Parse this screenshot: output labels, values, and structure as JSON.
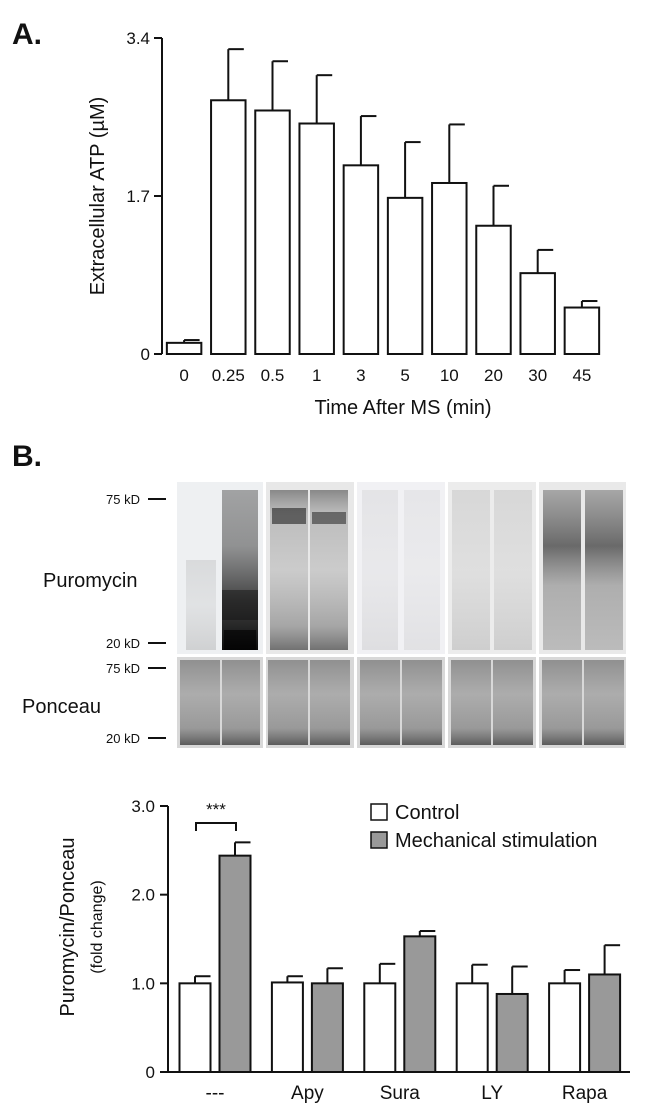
{
  "panels": {
    "a_label": "A.",
    "b_label": "B."
  },
  "chart_data": [
    {
      "type": "bar",
      "panel": "A",
      "title": "",
      "xlabel": "Time After MS (min)",
      "ylabel": "Extracellular ATP (µM)",
      "ylim": [
        0,
        3.4
      ],
      "yticks": [
        "0",
        "1.7",
        "3.4"
      ],
      "categories": [
        "0",
        "0.25",
        "0.5",
        "1",
        "3",
        "5",
        "10",
        "20",
        "30",
        "45"
      ],
      "values": [
        0.12,
        2.73,
        2.62,
        2.48,
        2.03,
        1.68,
        1.84,
        1.38,
        0.87,
        0.5
      ],
      "errors": [
        0.03,
        0.55,
        0.53,
        0.52,
        0.53,
        0.6,
        0.63,
        0.43,
        0.25,
        0.07
      ],
      "bar_color": "#ffffff",
      "grid": false
    },
    {
      "type": "bar",
      "panel": "B",
      "title": "",
      "xlabel": "",
      "ylabel": "Puromycin/Ponceau",
      "ylabel2": "(fold change)",
      "ylim": [
        0,
        3.0
      ],
      "yticks": [
        "0",
        "1.0",
        "2.0",
        "3.0"
      ],
      "categories": [
        "---",
        "Apy",
        "Sura",
        "LY",
        "Rapa"
      ],
      "series": [
        {
          "name": "Control",
          "values": [
            1.0,
            1.01,
            1.0,
            1.0,
            1.0
          ],
          "errors": [
            0.08,
            0.07,
            0.22,
            0.21,
            0.15
          ],
          "color": "#ffffff"
        },
        {
          "name": "Mechanical stimulation",
          "values": [
            2.44,
            1.0,
            1.53,
            0.88,
            1.1
          ],
          "errors": [
            0.15,
            0.17,
            0.06,
            0.31,
            0.33
          ],
          "color": "#999999"
        }
      ],
      "annotations": [
        "***"
      ],
      "legend_position": "top-right",
      "grid": false
    }
  ],
  "blot": {
    "puromycin_label": "Puromycin",
    "ponceau_label": "Ponceau",
    "markers": {
      "puro_top": "75 kD",
      "puro_bottom": "20 kD",
      "pon_top": "75 kD",
      "pon_bottom": "20 kD"
    }
  }
}
